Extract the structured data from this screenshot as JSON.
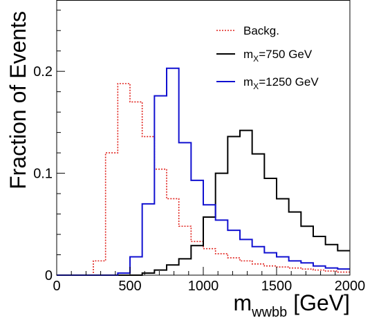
{
  "chart_data": {
    "type": "line",
    "step": true,
    "xlabel": {
      "main": "m",
      "sub": "wwbb",
      "unit": "[GeV]"
    },
    "ylabel": "Fraction of Events",
    "xlim": [
      0,
      2000
    ],
    "ylim": [
      0,
      0.27
    ],
    "xticks": [
      {
        "v": 0,
        "label": "0"
      },
      {
        "v": 500,
        "label": "500"
      },
      {
        "v": 1000,
        "label": "1000"
      },
      {
        "v": 1500,
        "label": "1500"
      },
      {
        "v": 2000,
        "label": "2000"
      }
    ],
    "yticks": [
      {
        "v": 0,
        "label": "0"
      },
      {
        "v": 0.1,
        "label": "0.1"
      },
      {
        "v": 0.2,
        "label": "0.2"
      }
    ],
    "grid": false,
    "legend": "top-right",
    "bin_edges": [
      0,
      83.3,
      166.7,
      250,
      333.3,
      416.7,
      500,
      583.3,
      666.7,
      750,
      833.3,
      916.7,
      1000,
      1083.3,
      1166.7,
      1250,
      1333.3,
      1416.7,
      1500,
      1583.3,
      1666.7,
      1750,
      1833.3,
      1916.7,
      2000
    ],
    "series": [
      {
        "name": "Backg.",
        "color": "#e0201b",
        "dash": "2,2",
        "values": [
          0,
          0,
          0,
          0.014,
          0.12,
          0.188,
          0.17,
          0.136,
          0.104,
          0.075,
          0.048,
          0.033,
          0.026,
          0.021,
          0.017,
          0.014,
          0.011,
          0.009,
          0.008,
          0.007,
          0.006,
          0.005,
          0.004,
          0.003
        ]
      },
      {
        "name": "mX=750 GeV",
        "label_main": "m",
        "label_sub": "X",
        "label_rest": "=750 GeV",
        "color": "#000000",
        "dash": "",
        "values": [
          0,
          0,
          0,
          0,
          0,
          0,
          0,
          0.002,
          0.005,
          0.01,
          0.016,
          0.029,
          0.057,
          0.1,
          0.136,
          0.142,
          0.119,
          0.095,
          0.075,
          0.062,
          0.048,
          0.038,
          0.03,
          0.024
        ]
      },
      {
        "name": "mX=1250 GeV",
        "label_main": "m",
        "label_sub": "X",
        "label_rest": "=1250 GeV",
        "color": "#1010d0",
        "dash": "",
        "values": [
          0,
          0,
          0,
          0,
          0,
          0.002,
          0.018,
          0.07,
          0.176,
          0.203,
          0.13,
          0.093,
          0.069,
          0.054,
          0.044,
          0.035,
          0.028,
          0.022,
          0.018,
          0.014,
          0.012,
          0.009,
          0.007,
          0.006
        ]
      }
    ]
  }
}
